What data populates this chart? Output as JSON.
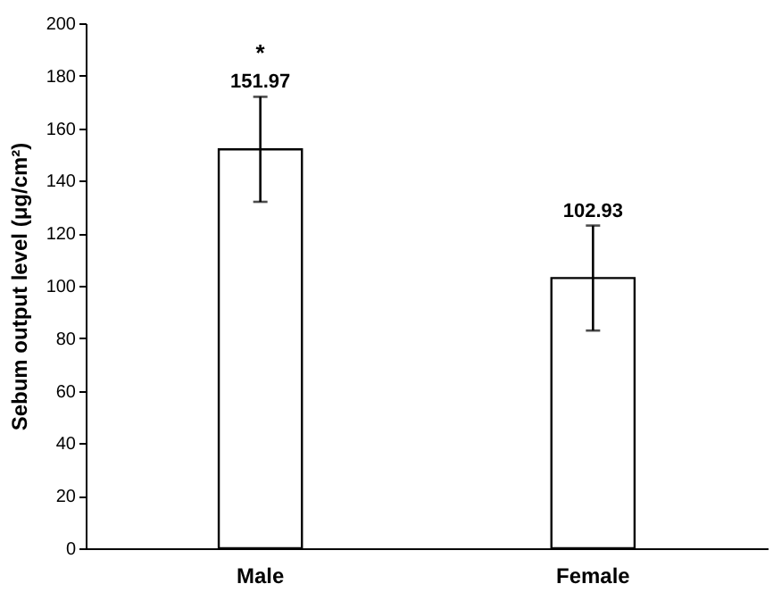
{
  "chart_data": {
    "type": "bar",
    "ylabel": "Sebum output level (μg/cm²)",
    "categories": [
      "Male",
      "Female"
    ],
    "values": [
      151.97,
      102.93
    ],
    "color": "#ffffff",
    "errors": [
      20,
      20
    ],
    "value_labels": [
      "151.97",
      "102.93"
    ],
    "annotations": [
      "*"
    ],
    "ylim": [
      0,
      200
    ],
    "yticks": [
      0,
      20,
      40,
      60,
      80,
      100,
      120,
      140,
      160,
      180,
      200
    ],
    "grid": false
  }
}
